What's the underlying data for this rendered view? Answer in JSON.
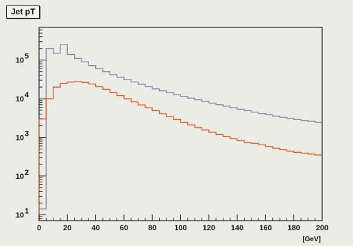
{
  "chart_data": {
    "type": "line",
    "title": "Jet pT",
    "xlabel": "[GeV]",
    "ylabel": "",
    "xlim": [
      0,
      200
    ],
    "ylim": [
      7,
      700000
    ],
    "yscale": "log",
    "grid": false,
    "legend": "none",
    "x_ticks": [
      "0",
      "20",
      "40",
      "60",
      "80",
      "100",
      "120",
      "140",
      "160",
      "180",
      "200"
    ],
    "y_ticks": [
      {
        "base": "10",
        "exp": "1",
        "value": 10
      },
      {
        "base": "10",
        "exp": "2",
        "value": 100
      },
      {
        "base": "10",
        "exp": "3",
        "value": 1000
      },
      {
        "base": "10",
        "exp": "4",
        "value": 10000
      },
      {
        "base": "10",
        "exp": "5",
        "value": 100000
      }
    ],
    "bin_width": 5,
    "series": [
      {
        "color": "#8585ad",
        "values": [
          14,
          200000,
          150000,
          250000,
          140000,
          110000,
          90000,
          72000,
          60000,
          50000,
          42000,
          36000,
          31000,
          27000,
          23500,
          20500,
          18000,
          16000,
          14300,
          12800,
          11500,
          10400,
          9400,
          8500,
          7700,
          7000,
          6400,
          5850,
          5350,
          4900,
          4500,
          4150,
          3850,
          3550,
          3300,
          3100,
          2900,
          2750,
          2600,
          2450
        ]
      },
      {
        "color": "#e2561a",
        "values": [
          3000,
          10000,
          20000,
          25000,
          27000,
          27500,
          26500,
          24000,
          20500,
          17500,
          14500,
          12000,
          10000,
          8300,
          6900,
          5800,
          4900,
          4100,
          3450,
          2900,
          2450,
          2100,
          1800,
          1550,
          1350,
          1180,
          1040,
          920,
          820,
          730,
          700,
          640,
          580,
          525,
          480,
          440,
          410,
          390,
          370,
          350
        ]
      }
    ]
  }
}
